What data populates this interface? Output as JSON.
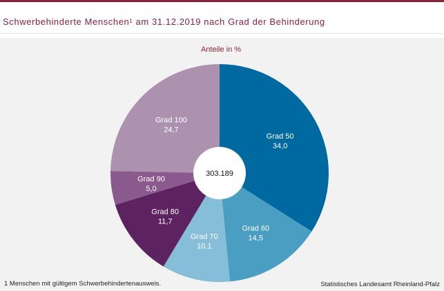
{
  "header": {
    "title": "Schwerbehinderte Menschen¹ am 31.12.2019 nach Grad der Behinderung"
  },
  "chart_data": {
    "type": "pie",
    "subtitle": "Anteile in %",
    "center_label": "303.189",
    "slices": [
      {
        "label": "Grad 50",
        "value": 34.0,
        "value_label": "34,0",
        "color": "#0069a0"
      },
      {
        "label": "Grad 60",
        "value": 14.5,
        "value_label": "14,5",
        "color": "#4a9ec2"
      },
      {
        "label": "Grad 70",
        "value": 10.1,
        "value_label": "10,1",
        "color": "#86bdd9"
      },
      {
        "label": "Grad 80",
        "value": 11.7,
        "value_label": "11,7",
        "color": "#5c2360"
      },
      {
        "label": "Grad 90",
        "value": 5.0,
        "value_label": "5,0",
        "color": "#8a5a8e"
      },
      {
        "label": "Grad 100",
        "value": 24.7,
        "value_label": "24,7",
        "color": "#ad92b0"
      }
    ]
  },
  "footer": {
    "footnote": "1 Menschen mit gültigem Schwerbehindertenausweis.",
    "source": "Statistisches Landesamt Rheinland-Pfalz"
  }
}
